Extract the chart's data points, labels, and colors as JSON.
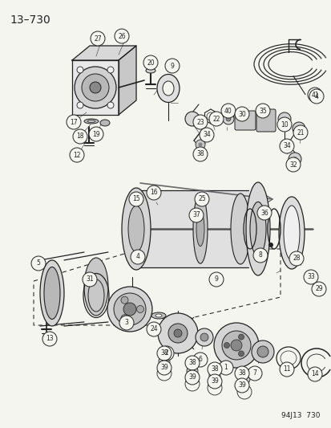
{
  "title": "13–730",
  "footer": "94J13  730",
  "bg": "#f5f5f0",
  "lc": "#222222",
  "figsize": [
    4.14,
    5.33
  ],
  "dpi": 100
}
